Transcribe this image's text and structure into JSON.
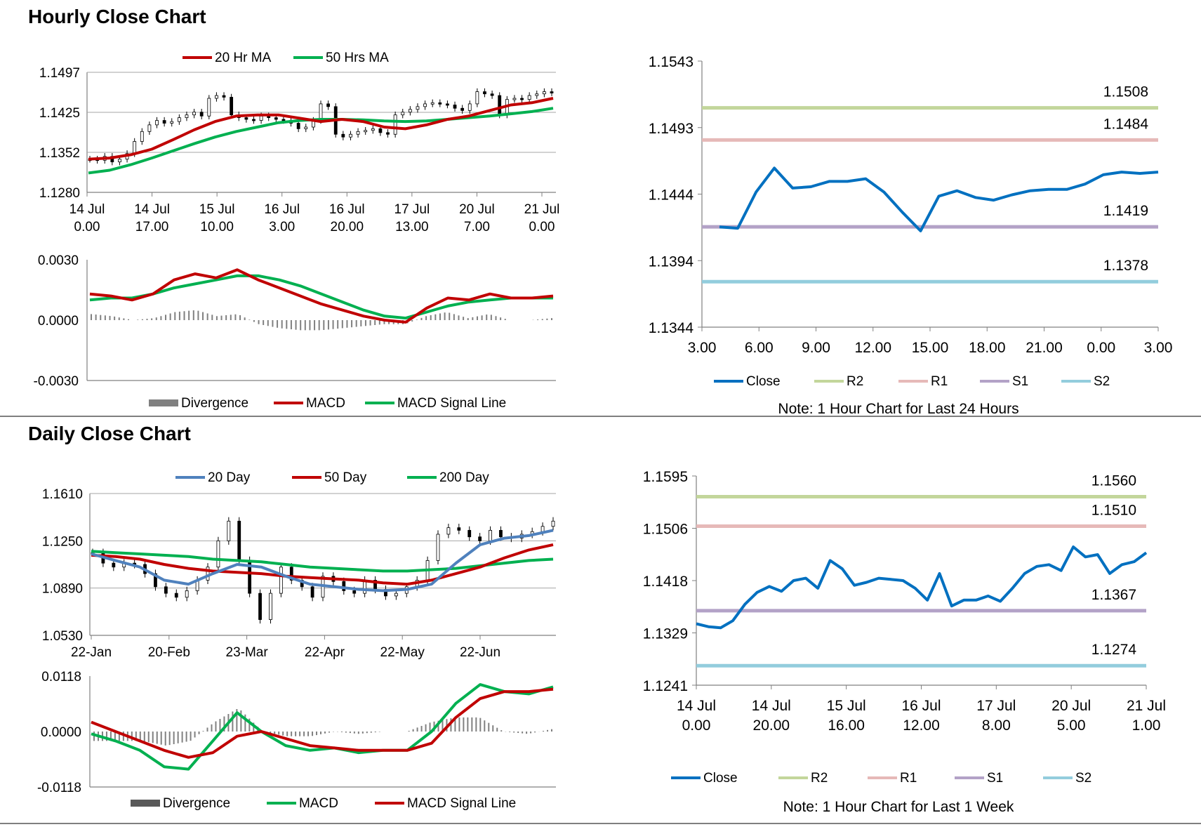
{
  "sections": [
    {
      "title": "Hourly Close Chart"
    },
    {
      "title": "Daily Close Chart"
    }
  ],
  "colors": {
    "ma20_hourly": "#c00000",
    "ma50_hourly": "#00b050",
    "ma20_daily": "#4f81bd",
    "ma50_daily": "#c00000",
    "ma200_daily": "#00b050",
    "macd_red": "#c00000",
    "macd_green": "#00b050",
    "divergence": "#808080",
    "close": "#0070c0",
    "r2": "#c3d69b",
    "r1": "#e6b9b8",
    "s1": "#b3a2c7",
    "s2": "#93cddd"
  },
  "chart_data": [
    {
      "id": "hourly_price",
      "type": "line",
      "title": "",
      "ylim": [
        1.128,
        1.1497
      ],
      "y_ticks": [
        "1.1497",
        "1.1425",
        "1.1352",
        "1.1280"
      ],
      "x_ticks": [
        {
          "line1": "14 Jul",
          "line2": "0.00"
        },
        {
          "line1": "14 Jul",
          "line2": "17.00"
        },
        {
          "line1": "15 Jul",
          "line2": "10.00"
        },
        {
          "line1": "16 Jul",
          "line2": "3.00"
        },
        {
          "line1": "16 Jul",
          "line2": "20.00"
        },
        {
          "line1": "17 Jul",
          "line2": "13.00"
        },
        {
          "line1": "20 Jul",
          "line2": "7.00"
        },
        {
          "line1": "21 Jul",
          "line2": "0.00"
        }
      ],
      "legend": [
        "20 Hr MA",
        "50 Hrs MA"
      ],
      "series": [
        {
          "name": "20 Hr MA",
          "values": [
            1.134,
            1.1342,
            1.1348,
            1.1358,
            1.1375,
            1.1393,
            1.1408,
            1.1418,
            1.142,
            1.142,
            1.1414,
            1.1408,
            1.1412,
            1.1408,
            1.1398,
            1.1395,
            1.1402,
            1.1412,
            1.1418,
            1.1428,
            1.1438,
            1.1442,
            1.145
          ]
        },
        {
          "name": "50 Hrs MA",
          "values": [
            1.1315,
            1.132,
            1.133,
            1.1342,
            1.1355,
            1.1368,
            1.138,
            1.139,
            1.1398,
            1.1406,
            1.141,
            1.1412,
            1.1412,
            1.1411,
            1.1409,
            1.1408,
            1.1409,
            1.1412,
            1.1415,
            1.1418,
            1.1422,
            1.1426,
            1.1432
          ]
        }
      ],
      "candles_close": [
        1.134,
        1.1338,
        1.1345,
        1.1335,
        1.134,
        1.135,
        1.1372,
        1.139,
        1.1402,
        1.141,
        1.1405,
        1.1408,
        1.1415,
        1.142,
        1.1425,
        1.1418,
        1.145,
        1.1455,
        1.1452,
        1.142,
        1.1415,
        1.1412,
        1.141,
        1.1418,
        1.1415,
        1.1412,
        1.141,
        1.1405,
        1.1395,
        1.1398,
        1.141,
        1.144,
        1.1435,
        1.1385,
        1.138,
        1.1385,
        1.139,
        1.1392,
        1.1395,
        1.1388,
        1.1385,
        1.142,
        1.1425,
        1.143,
        1.1435,
        1.144,
        1.1442,
        1.144,
        1.1438,
        1.1432,
        1.1428,
        1.144,
        1.1462,
        1.1458,
        1.1455,
        1.142,
        1.1448,
        1.145,
        1.1448,
        1.1455,
        1.1458,
        1.1462,
        1.146
      ]
    },
    {
      "id": "hourly_macd",
      "type": "line",
      "ylim": [
        -0.003,
        0.003
      ],
      "y_ticks": [
        "0.0030",
        "0.0000",
        "-0.0030"
      ],
      "legend": [
        "Divergence",
        "MACD",
        "MACD Signal Line"
      ],
      "series": [
        {
          "name": "MACD",
          "values": [
            0.0013,
            0.0012,
            0.001,
            0.0013,
            0.002,
            0.0023,
            0.0021,
            0.0025,
            0.002,
            0.0016,
            0.0012,
            0.0008,
            0.0005,
            0.0002,
            0.0,
            -0.0001,
            0.0006,
            0.0011,
            0.001,
            0.0013,
            0.0011,
            0.0011,
            0.0012
          ]
        },
        {
          "name": "MACD Signal Line",
          "values": [
            0.001,
            0.0011,
            0.0011,
            0.0013,
            0.0016,
            0.0018,
            0.002,
            0.0022,
            0.0022,
            0.002,
            0.0017,
            0.0013,
            0.0009,
            0.0005,
            0.0002,
            0.0001,
            0.0004,
            0.0007,
            0.0009,
            0.001,
            0.0011,
            0.0011,
            0.0011
          ]
        },
        {
          "name": "Divergence",
          "values": [
            0.0003,
            0.0002,
            0.0,
            0.0001,
            0.0004,
            0.0005,
            0.0002,
            0.0003,
            -0.0002,
            -0.0004,
            -0.0005,
            -0.0005,
            -0.0004,
            -0.0003,
            -0.0002,
            -0.0002,
            0.0002,
            0.0004,
            0.0001,
            0.0003,
            0.0,
            0.0,
            0.0001
          ]
        }
      ]
    },
    {
      "id": "hourly_24h",
      "type": "line",
      "ylim": [
        1.1344,
        1.1543
      ],
      "y_ticks": [
        "1.1543",
        "1.1493",
        "1.1444",
        "1.1394",
        "1.1344"
      ],
      "x_ticks": [
        "3.00",
        "6.00",
        "9.00",
        "12.00",
        "15.00",
        "18.00",
        "21.00",
        "0.00",
        "3.00"
      ],
      "x": [
        0,
        1,
        2,
        3,
        4,
        5,
        6,
        7,
        8,
        9,
        10,
        11,
        12,
        13,
        14,
        15,
        16,
        17,
        18,
        19,
        20,
        21,
        22,
        23,
        24
      ],
      "series": [
        {
          "name": "Close",
          "values": [
            1.1419,
            1.1418,
            1.1445,
            1.1463,
            1.1448,
            1.1449,
            1.1453,
            1.1453,
            1.1455,
            1.1445,
            1.143,
            1.1416,
            1.1442,
            1.1446,
            1.1441,
            1.1439,
            1.1443,
            1.1446,
            1.1447,
            1.1447,
            1.1451,
            1.1458,
            1.146,
            1.1459,
            1.146
          ]
        }
      ],
      "levels": [
        {
          "name": "R2",
          "value": 1.1508,
          "label": "1.1508"
        },
        {
          "name": "R1",
          "value": 1.1484,
          "label": "1.1484"
        },
        {
          "name": "S1",
          "value": 1.1419,
          "label": "1.1419"
        },
        {
          "name": "S2",
          "value": 1.1378,
          "label": "1.1378"
        }
      ],
      "legend": [
        "Close",
        "R2",
        "R1",
        "S1",
        "S2"
      ],
      "note": "Note: 1 Hour Chart for Last 24 Hours"
    },
    {
      "id": "daily_price",
      "type": "line",
      "ylim": [
        1.053,
        1.161
      ],
      "y_ticks": [
        "1.1610",
        "1.1250",
        "1.0890",
        "1.0530"
      ],
      "x_ticks": [
        "22-Jan",
        "20-Feb",
        "23-Mar",
        "22-Apr",
        "22-May",
        "22-Jun"
      ],
      "legend": [
        "20 Day",
        "50 Day",
        "200 Day"
      ],
      "series": [
        {
          "name": "20 Day",
          "values": [
            1.115,
            1.11,
            1.105,
            1.095,
            1.092,
            1.1,
            1.107,
            1.105,
            1.098,
            1.092,
            1.09,
            1.088,
            1.087,
            1.088,
            1.092,
            1.108,
            1.122,
            1.127,
            1.129,
            1.133
          ]
        },
        {
          "name": "50 Day",
          "values": [
            1.114,
            1.113,
            1.111,
            1.107,
            1.104,
            1.102,
            1.101,
            1.1,
            1.098,
            1.097,
            1.096,
            1.095,
            1.093,
            1.092,
            1.095,
            1.1,
            1.105,
            1.112,
            1.118,
            1.122
          ]
        },
        {
          "name": "200 Day",
          "values": [
            1.117,
            1.116,
            1.115,
            1.114,
            1.113,
            1.111,
            1.11,
            1.109,
            1.107,
            1.105,
            1.104,
            1.103,
            1.102,
            1.102,
            1.103,
            1.104,
            1.106,
            1.108,
            1.11,
            1.111
          ]
        }
      ],
      "candles_close": [
        1.116,
        1.108,
        1.105,
        1.108,
        1.107,
        1.1,
        1.09,
        1.085,
        1.082,
        1.087,
        1.095,
        1.105,
        1.125,
        1.14,
        1.11,
        1.085,
        1.065,
        1.085,
        1.105,
        1.095,
        1.09,
        1.082,
        1.098,
        1.094,
        1.087,
        1.085,
        1.095,
        1.088,
        1.083,
        1.085,
        1.09,
        1.095,
        1.11,
        1.13,
        1.135,
        1.133,
        1.128,
        1.125,
        1.133,
        1.128,
        1.127,
        1.13,
        1.132,
        1.136,
        1.14
      ]
    },
    {
      "id": "daily_macd",
      "type": "line",
      "ylim": [
        -0.0118,
        0.0118
      ],
      "y_ticks": [
        "0.0118",
        "0.0000",
        "-0.0118"
      ],
      "legend": [
        "Divergence",
        "MACD",
        "MACD Signal Line"
      ],
      "series": [
        {
          "name": "MACD",
          "values": [
            -0.0005,
            -0.002,
            -0.004,
            -0.0075,
            -0.008,
            -0.002,
            0.004,
            0.0,
            -0.003,
            -0.004,
            -0.0035,
            -0.0045,
            -0.004,
            -0.004,
            0.0,
            0.006,
            0.01,
            0.0085,
            0.008,
            0.0095
          ]
        },
        {
          "name": "MACD Signal Line",
          "values": [
            0.002,
            0.0,
            -0.002,
            -0.004,
            -0.0055,
            -0.0045,
            -0.001,
            0.0,
            -0.0015,
            -0.003,
            -0.0035,
            -0.004,
            -0.004,
            -0.004,
            -0.0025,
            0.003,
            0.007,
            0.0085,
            0.0085,
            0.009
          ]
        },
        {
          "name": "Divergence",
          "values": [
            -0.002,
            -0.002,
            -0.002,
            -0.003,
            -0.002,
            0.002,
            0.005,
            0.0,
            -0.001,
            -0.001,
            0.0,
            -0.0005,
            0.0,
            0.0,
            0.002,
            0.003,
            0.003,
            0.0,
            -0.0005,
            0.0005
          ]
        }
      ]
    },
    {
      "id": "daily_week",
      "type": "line",
      "ylim": [
        1.1241,
        1.1595
      ],
      "y_ticks": [
        "1.1595",
        "1.1506",
        "1.1418",
        "1.1329",
        "1.1241"
      ],
      "x_ticks": [
        {
          "line1": "14 Jul",
          "line2": "0.00"
        },
        {
          "line1": "14 Jul",
          "line2": "20.00"
        },
        {
          "line1": "15 Jul",
          "line2": "16.00"
        },
        {
          "line1": "16 Jul",
          "line2": "12.00"
        },
        {
          "line1": "17 Jul",
          "line2": "8.00"
        },
        {
          "line1": "20 Jul",
          "line2": "5.00"
        },
        {
          "line1": "21 Jul",
          "line2": "1.00"
        }
      ],
      "series": [
        {
          "name": "Close",
          "values": [
            1.1345,
            1.134,
            1.1338,
            1.135,
            1.1378,
            1.1398,
            1.1408,
            1.14,
            1.1418,
            1.1422,
            1.1405,
            1.1452,
            1.1438,
            1.141,
            1.1415,
            1.1422,
            1.142,
            1.1418,
            1.1405,
            1.1385,
            1.143,
            1.1375,
            1.1385,
            1.1385,
            1.1392,
            1.1383,
            1.1405,
            1.143,
            1.1442,
            1.1445,
            1.1435,
            1.1475,
            1.1458,
            1.1462,
            1.143,
            1.1445,
            1.145,
            1.1465
          ]
        }
      ],
      "levels": [
        {
          "name": "R2",
          "value": 1.156,
          "label": "1.1560"
        },
        {
          "name": "R1",
          "value": 1.151,
          "label": "1.1510"
        },
        {
          "name": "S1",
          "value": 1.1367,
          "label": "1.1367"
        },
        {
          "name": "S2",
          "value": 1.1274,
          "label": "1.1274"
        }
      ],
      "legend": [
        "Close",
        "R2",
        "R1",
        "S1",
        "S2"
      ],
      "note": "Note: 1 Hour Chart for Last 1 Week"
    }
  ]
}
